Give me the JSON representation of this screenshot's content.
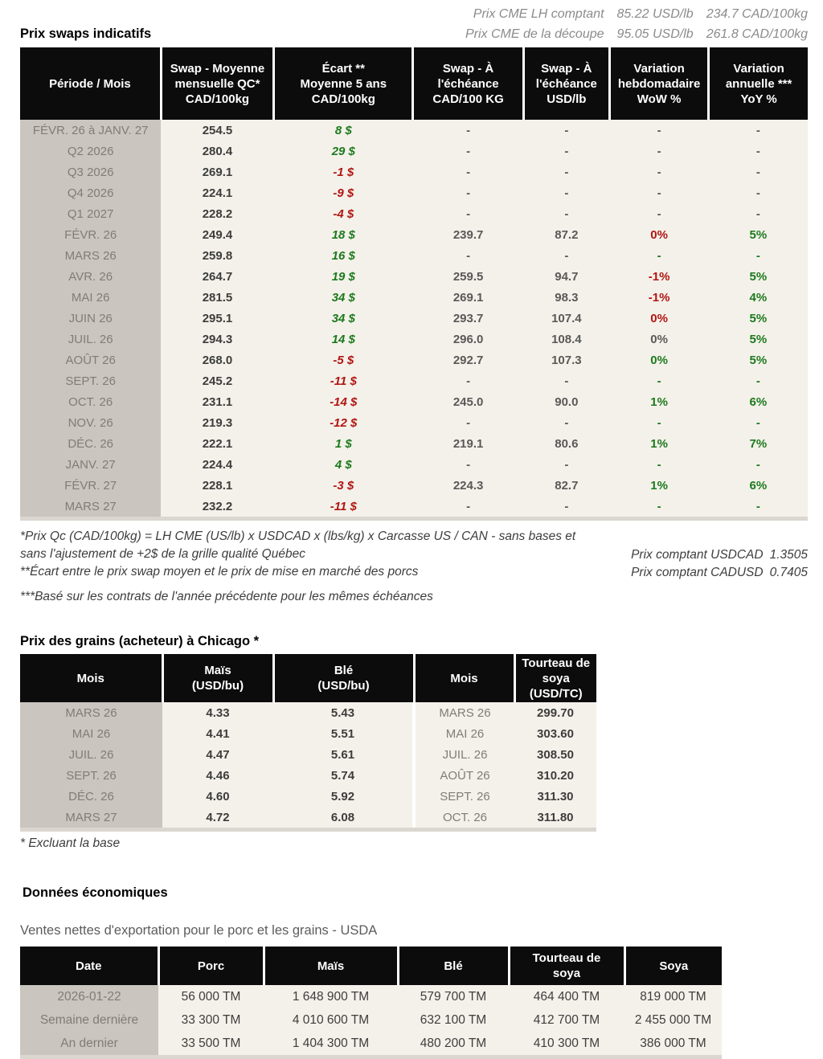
{
  "colors": {
    "green": "#1c7a1c",
    "red": "#b11512",
    "gray": "#595959",
    "dark": "#3d3d3d",
    "label-text": "#817d75",
    "label-bg": "#cac6bf",
    "body-bg": "#f4f1ea",
    "header-bg": "#0c0c0c",
    "muted": "#8b8b8b",
    "strip": "#dbd7d0",
    "subtitle-gray": "#5c5c5c"
  },
  "cme_header": {
    "lines": [
      {
        "label": "Prix CME LH comptant",
        "usd": "85.22 USD/lb",
        "cad": "234.7 CAD/100kg"
      },
      {
        "label": "Prix CME de la découpe",
        "usd": "95.05 USD/lb",
        "cad": "261.8 CAD/100kg"
      }
    ]
  },
  "swaps_section": {
    "title": "Prix swaps indicatifs",
    "columns": [
      "Période / Mois",
      "Swap - Moyenne\nmensuelle QC*\nCAD/100kg",
      "Écart **\nMoyenne 5 ans\nCAD/100kg",
      "Swap - À\nl'échéance\nCAD/100 KG",
      "Swap - À\nl'échéance\nUSD/lb",
      "Variation\nhebdomadaire\nWoW %",
      "Variation\nannuelle ***\nYoY %"
    ],
    "rows": [
      {
        "label": "FÉVR. 26 à  JANV. 27",
        "swap": "254.5",
        "ecart": "8 $",
        "ecart_c": "green",
        "cad": "-",
        "usd": "-",
        "wow": "-",
        "wow_c": "gray",
        "yoy": "-",
        "yoy_c": "gray"
      },
      {
        "label": "Q2 2026",
        "swap": "280.4",
        "ecart": "29 $",
        "ecart_c": "green",
        "cad": "-",
        "usd": "-",
        "wow": "-",
        "wow_c": "gray",
        "yoy": "-",
        "yoy_c": "gray"
      },
      {
        "label": "Q3 2026",
        "swap": "269.1",
        "ecart": "-1 $",
        "ecart_c": "red",
        "cad": "-",
        "usd": "-",
        "wow": "-",
        "wow_c": "gray",
        "yoy": "-",
        "yoy_c": "gray"
      },
      {
        "label": "Q4 2026",
        "swap": "224.1",
        "ecart": "-9 $",
        "ecart_c": "red",
        "cad": "-",
        "usd": "-",
        "wow": "-",
        "wow_c": "gray",
        "yoy": "-",
        "yoy_c": "gray"
      },
      {
        "label": "Q1 2027",
        "swap": "228.2",
        "ecart": "-4 $",
        "ecart_c": "red",
        "cad": "-",
        "usd": "-",
        "wow": "-",
        "wow_c": "gray",
        "yoy": "-",
        "yoy_c": "gray"
      },
      {
        "label": "FÉVR. 26",
        "swap": "249.4",
        "ecart": "18 $",
        "ecart_c": "green",
        "cad": "239.7",
        "usd": "87.2",
        "wow": "0%",
        "wow_c": "red",
        "yoy": "5%",
        "yoy_c": "green"
      },
      {
        "label": "MARS 26",
        "swap": "259.8",
        "ecart": "16 $",
        "ecart_c": "green",
        "cad": "-",
        "usd": "-",
        "wow": "-",
        "wow_c": "green",
        "yoy": "-",
        "yoy_c": "green"
      },
      {
        "label": "AVR. 26",
        "swap": "264.7",
        "ecart": "19 $",
        "ecart_c": "green",
        "cad": "259.5",
        "usd": "94.7",
        "wow": "-1%",
        "wow_c": "red",
        "yoy": "5%",
        "yoy_c": "green"
      },
      {
        "label": "MAI 26",
        "swap": "281.5",
        "ecart": "34 $",
        "ecart_c": "green",
        "cad": "269.1",
        "usd": "98.3",
        "wow": "-1%",
        "wow_c": "red",
        "yoy": "4%",
        "yoy_c": "green"
      },
      {
        "label": "JUIN 26",
        "swap": "295.1",
        "ecart": "34 $",
        "ecart_c": "green",
        "cad": "293.7",
        "usd": "107.4",
        "wow": "0%",
        "wow_c": "red",
        "yoy": "5%",
        "yoy_c": "green"
      },
      {
        "label": "JUIL. 26",
        "swap": "294.3",
        "ecart": "14 $",
        "ecart_c": "green",
        "cad": "296.0",
        "usd": "108.4",
        "wow": "0%",
        "wow_c": "gray",
        "yoy": "5%",
        "yoy_c": "green"
      },
      {
        "label": "AOÛT 26",
        "swap": "268.0",
        "ecart": "-5 $",
        "ecart_c": "red",
        "cad": "292.7",
        "usd": "107.3",
        "wow": "0%",
        "wow_c": "green",
        "yoy": "5%",
        "yoy_c": "green"
      },
      {
        "label": "SEPT. 26",
        "swap": "245.2",
        "ecart": "-11 $",
        "ecart_c": "red",
        "cad": "-",
        "usd": "-",
        "wow": "-",
        "wow_c": "green",
        "yoy": "-",
        "yoy_c": "green"
      },
      {
        "label": "OCT. 26",
        "swap": "231.1",
        "ecart": "-14 $",
        "ecart_c": "red",
        "cad": "245.0",
        "usd": "90.0",
        "wow": "1%",
        "wow_c": "green",
        "yoy": "6%",
        "yoy_c": "green"
      },
      {
        "label": "NOV. 26",
        "swap": "219.3",
        "ecart": "-12 $",
        "ecart_c": "red",
        "cad": "-",
        "usd": "-",
        "wow": "-",
        "wow_c": "green",
        "yoy": "-",
        "yoy_c": "green"
      },
      {
        "label": "DÉC. 26",
        "swap": "222.1",
        "ecart": "1 $",
        "ecart_c": "green",
        "cad": "219.1",
        "usd": "80.6",
        "wow": "1%",
        "wow_c": "green",
        "yoy": "7%",
        "yoy_c": "green"
      },
      {
        "label": "JANV. 27",
        "swap": "224.4",
        "ecart": "4 $",
        "ecart_c": "green",
        "cad": "-",
        "usd": "-",
        "wow": "-",
        "wow_c": "green",
        "yoy": "-",
        "yoy_c": "green"
      },
      {
        "label": "FÉVR. 27",
        "swap": "228.1",
        "ecart": "-3 $",
        "ecart_c": "red",
        "cad": "224.3",
        "usd": "82.7",
        "wow": "1%",
        "wow_c": "green",
        "yoy": "6%",
        "yoy_c": "green"
      },
      {
        "label": "MARS 27",
        "swap": "232.2",
        "ecart": "-11 $",
        "ecart_c": "red",
        "cad": "-",
        "usd": "-",
        "wow": "-",
        "wow_c": "green",
        "yoy": "-",
        "yoy_c": "green"
      }
    ]
  },
  "footnotes": {
    "note1": "*Prix Qc (CAD/100kg) = LH CME (US/lb) x USDCAD x (lbs/kg) x Carcasse US / CAN - sans bases et sans l'ajustement de +2$ de la grille qualité Québec",
    "note2": "**Écart entre le prix swap moyen et le prix de mise en marché des porcs",
    "note3": "***Basé sur les contrats de l'année précédente pour les mêmes échéances",
    "fx": [
      {
        "label": "Prix comptant USDCAD",
        "value": "1.3505"
      },
      {
        "label": "Prix comptant CADUSD",
        "value": "0.7405"
      }
    ]
  },
  "grains_section": {
    "title": "Prix des grains (acheteur) à Chicago *",
    "columns": [
      "Mois",
      "Maïs\n(USD/bu)",
      "Blé\n(USD/bu)",
      "Mois",
      "Tourteau de\nsoya\n(USD/TC)"
    ],
    "rows": [
      [
        "MARS 26",
        "4.33",
        "5.43",
        "MARS 26",
        "299.70"
      ],
      [
        "MAI 26",
        "4.41",
        "5.51",
        "MAI 26",
        "303.60"
      ],
      [
        "JUIL. 26",
        "4.47",
        "5.61",
        "JUIL. 26",
        "308.50"
      ],
      [
        "SEPT. 26",
        "4.46",
        "5.74",
        "AOÛT 26",
        "310.20"
      ],
      [
        "DÉC. 26",
        "4.60",
        "5.92",
        "SEPT. 26",
        "311.30"
      ],
      [
        "MARS 27",
        "4.72",
        "6.08",
        "OCT. 26",
        "311.80"
      ]
    ],
    "footnote": "* Excluant la base"
  },
  "economic_section": {
    "title": "Données économiques",
    "subtitle": "Ventes nettes d'exportation pour le porc et les grains - USDA",
    "columns": [
      "Date",
      "Porc",
      "Maïs",
      "Blé",
      "Tourteau de\nsoya",
      "Soya"
    ],
    "rows": [
      [
        "2026-01-22",
        "56 000 TM",
        "1 648 900 TM",
        "579 700 TM",
        "464 400 TM",
        "819 000 TM"
      ],
      [
        "Semaine dernière",
        "33 300 TM",
        "4 010 600 TM",
        "632 100 TM",
        "412 700 TM",
        "2 455 000 TM"
      ],
      [
        "An dernier",
        "33 500 TM",
        "1 404 300 TM",
        "480 200 TM",
        "410 300 TM",
        "386 000 TM"
      ]
    ]
  }
}
